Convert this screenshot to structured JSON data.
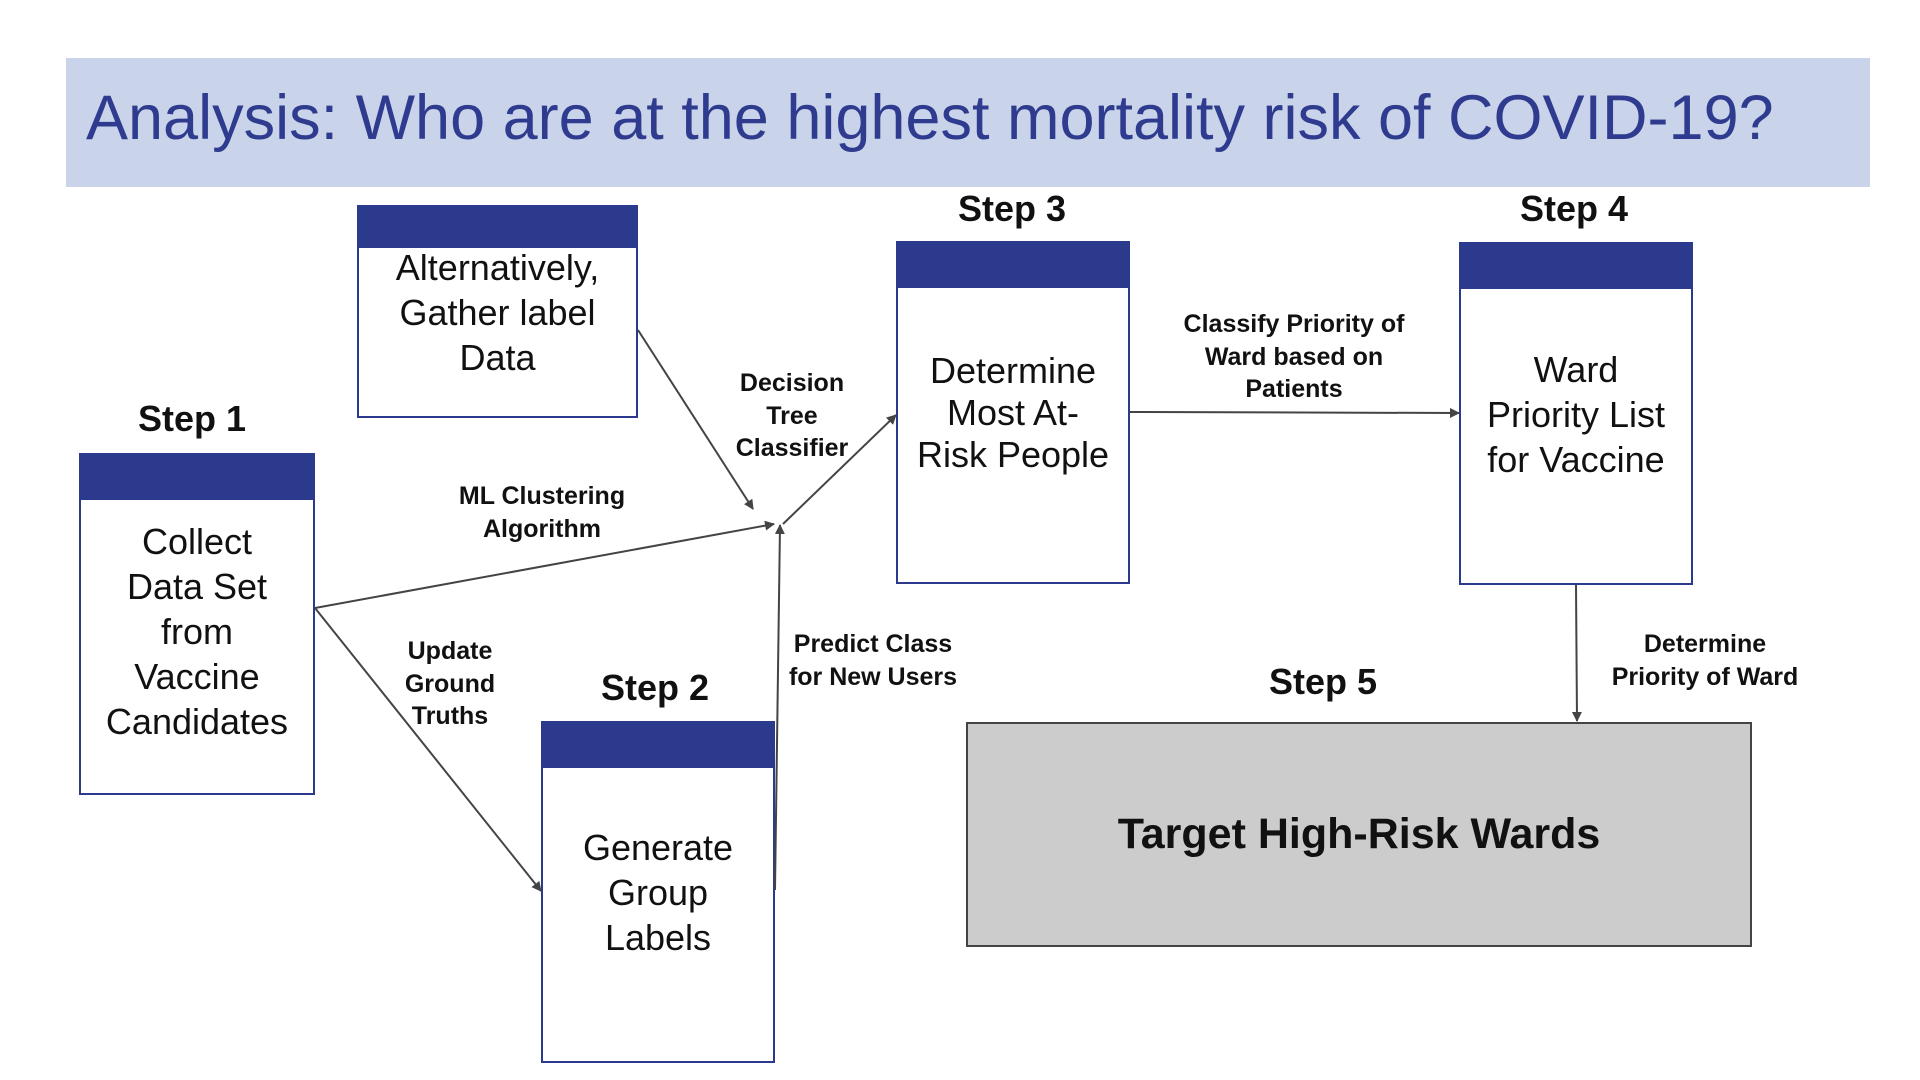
{
  "title": "Analysis: Who are at the highest mortality risk of COVID-19?",
  "steps": {
    "step1": {
      "label": "Step 1",
      "text": "Collect Data Set from Vaccine Candidates"
    },
    "alt": {
      "text": "Alternatively, Gather label Data"
    },
    "step2": {
      "label": "Step 2",
      "text": "Generate Group Labels"
    },
    "step3": {
      "label": "Step 3",
      "text": "Determine Most At-Risk People"
    },
    "step4": {
      "label": "Step 4",
      "text": "Ward Priority List for Vaccine"
    },
    "step5": {
      "label": "Step 5",
      "text": "Target High-Risk Wards"
    }
  },
  "edges": {
    "ml_clustering": "ML Clustering Algorithm",
    "update_ground_truths": "Update Ground Truths",
    "decision_tree": "Decision Tree Classifier",
    "predict_class": "Predict Class for New Users",
    "classify_priority": "Classify Priority of Ward based on Patients",
    "determine_priority": "Determine Priority of Ward"
  },
  "colors": {
    "title_band": "#c9d3ea",
    "title_text": "#2e3b8e",
    "box_header": "#2b3a8c",
    "target_fill": "#cccccc"
  }
}
